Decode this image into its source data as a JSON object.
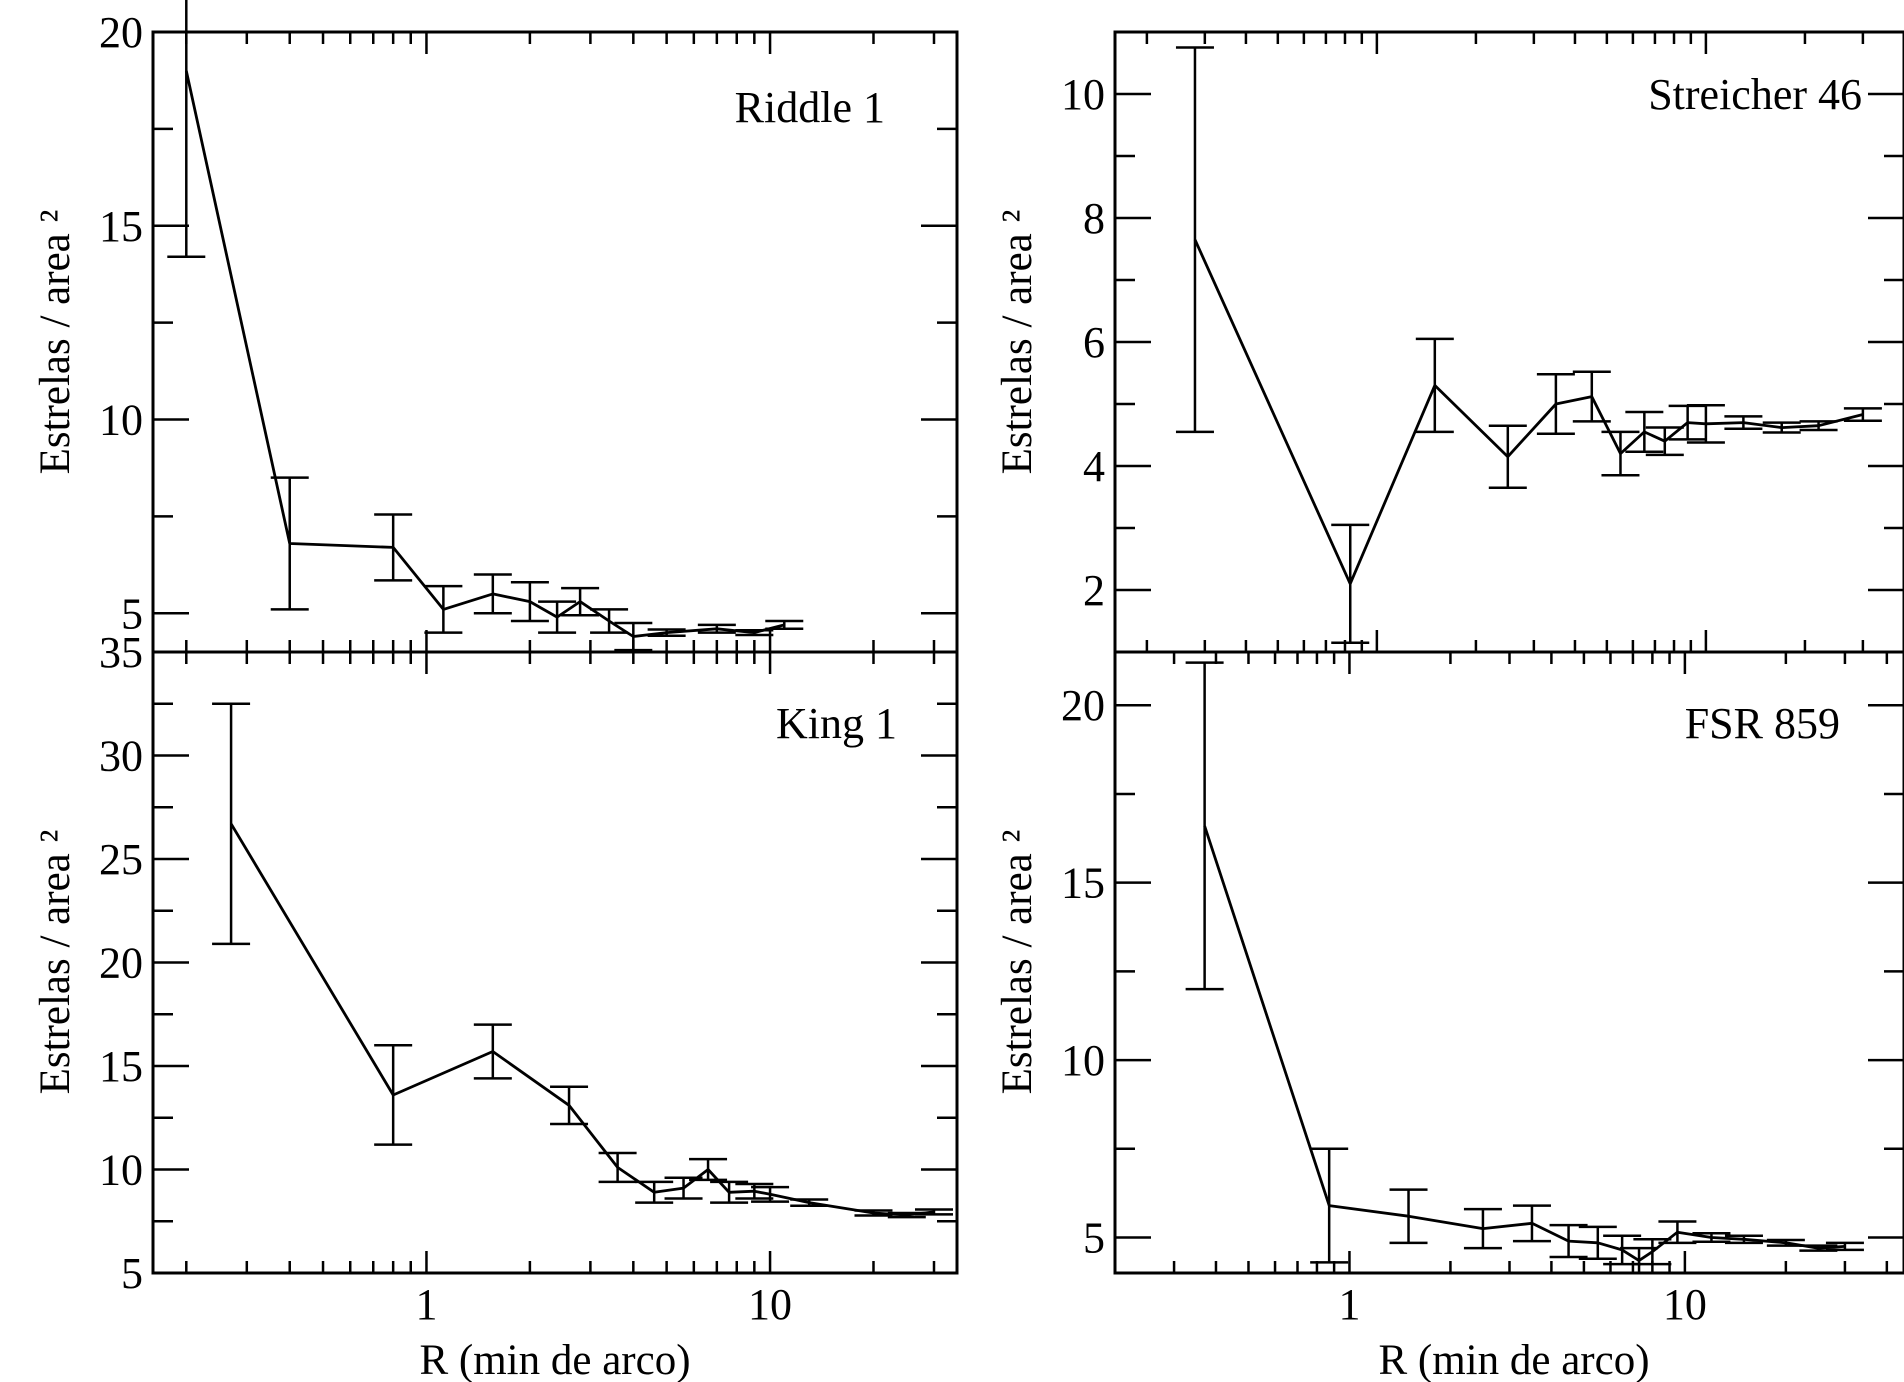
{
  "figure": {
    "x_axis_label": "R (min de arco)",
    "y_axis_label": "Estrelas / area ²"
  },
  "chart_data": [
    {
      "id": "riddle1",
      "type": "line",
      "title": "Riddle 1",
      "xlabel": "",
      "ylabel": "Estrelas / area ²",
      "xscale": "log",
      "xlim": [
        0.16,
        35
      ],
      "ylim": [
        4.0,
        20
      ],
      "xticks": [],
      "yticks": [
        5,
        10,
        15,
        20
      ],
      "x": [
        0.2,
        0.4,
        0.8,
        1.12,
        1.56,
        2.0,
        2.4,
        2.8,
        3.4,
        4.0,
        5.0,
        7.0,
        9.0,
        11.0
      ],
      "y": [
        19.0,
        6.8,
        6.7,
        5.1,
        5.5,
        5.3,
        4.9,
        5.3,
        4.8,
        4.4,
        4.5,
        4.6,
        4.5,
        4.7
      ],
      "err": [
        4.8,
        1.7,
        0.85,
        0.6,
        0.5,
        0.5,
        0.4,
        0.35,
        0.3,
        0.35,
        0.08,
        0.1,
        0.06,
        0.1
      ],
      "grid": false
    },
    {
      "id": "streicher46",
      "type": "line",
      "title": "Streicher 46",
      "xlabel": "",
      "ylabel": "Estrelas / area ²",
      "xscale": "log",
      "xlim": [
        0.16,
        40
      ],
      "ylim": [
        1.0,
        11.0
      ],
      "xticks": [],
      "yticks": [
        2,
        4,
        6,
        8,
        10
      ],
      "x": [
        0.28,
        0.83,
        1.5,
        2.5,
        3.5,
        4.5,
        5.5,
        6.5,
        7.5,
        8.8,
        10,
        13,
        17,
        22,
        30
      ],
      "y": [
        7.65,
        2.1,
        5.3,
        4.15,
        5.0,
        5.12,
        4.2,
        4.55,
        4.4,
        4.7,
        4.68,
        4.7,
        4.62,
        4.65,
        4.83
      ],
      "err": [
        3.1,
        0.95,
        0.75,
        0.5,
        0.48,
        0.4,
        0.35,
        0.32,
        0.22,
        0.27,
        0.3,
        0.1,
        0.08,
        0.07,
        0.1
      ],
      "grid": false
    },
    {
      "id": "king1",
      "type": "line",
      "title": "King 1",
      "xlabel": "R (min de arco)",
      "ylabel": "Estrelas / area ²",
      "xscale": "log",
      "xlim": [
        0.16,
        35
      ],
      "ylim": [
        5,
        35
      ],
      "xticks": [
        1,
        10
      ],
      "yticks": [
        5,
        10,
        15,
        20,
        25,
        30,
        35
      ],
      "x": [
        0.27,
        0.8,
        1.56,
        2.6,
        3.6,
        4.6,
        5.6,
        6.6,
        7.6,
        9.0,
        10,
        13,
        20,
        25,
        30
      ],
      "y": [
        26.7,
        13.6,
        15.7,
        13.1,
        10.1,
        8.9,
        9.1,
        10.0,
        8.9,
        8.95,
        8.8,
        8.4,
        7.9,
        7.8,
        7.95
      ],
      "err": [
        5.8,
        2.4,
        1.3,
        0.9,
        0.7,
        0.5,
        0.5,
        0.5,
        0.5,
        0.35,
        0.35,
        0.15,
        0.12,
        0.1,
        0.12
      ],
      "grid": false
    },
    {
      "id": "fsr859",
      "type": "line",
      "title": "FSR 859",
      "xlabel": "R (min de arco)",
      "ylabel": "Estrelas / area ²",
      "xscale": "log",
      "xlim": [
        0.2,
        45
      ],
      "ylim": [
        4.0,
        21.5
      ],
      "xticks": [
        1,
        10
      ],
      "yticks": [
        5,
        10,
        15,
        20
      ],
      "x": [
        0.37,
        0.87,
        1.5,
        2.5,
        3.5,
        4.5,
        5.5,
        6.5,
        7.3,
        8.0,
        9.5,
        12,
        15,
        20,
        25,
        30
      ],
      "y": [
        16.6,
        5.9,
        5.6,
        5.25,
        5.4,
        4.9,
        4.85,
        4.65,
        4.35,
        4.6,
        5.15,
        5.0,
        4.95,
        4.85,
        4.7,
        4.75
      ],
      "err": [
        4.6,
        1.6,
        0.75,
        0.55,
        0.5,
        0.45,
        0.45,
        0.4,
        0.35,
        0.35,
        0.3,
        0.12,
        0.1,
        0.08,
        0.07,
        0.1
      ],
      "grid": false
    }
  ]
}
